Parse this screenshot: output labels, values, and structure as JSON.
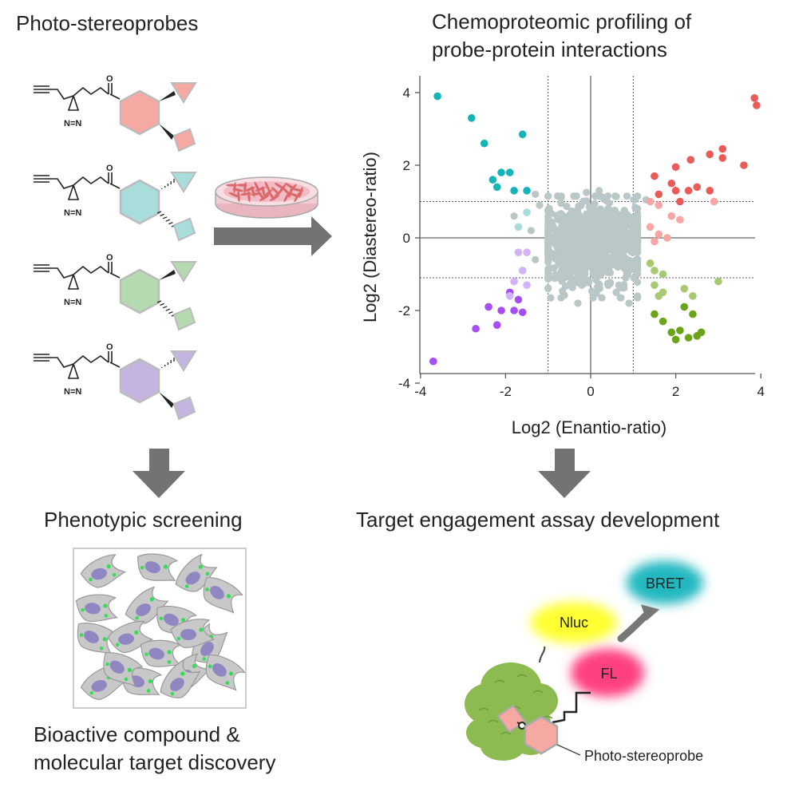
{
  "titles": {
    "photo_stereoprobes": "Photo-stereoprobes",
    "chemoproteomic_line1": "Chemoproteomic profiling of",
    "chemoproteomic_line2": "probe-protein interactions",
    "phenotypic_screening": "Phenotypic screening",
    "target_engagement": "Target engagement assay development",
    "bioactive_line1": "Bioactive compound &",
    "bioactive_line2": "molecular target discovery"
  },
  "probes": {
    "atom_oxygen": "O",
    "atom_diazirine": "N=N",
    "colors": [
      "#f6a8a3",
      "#a8dddc",
      "#b5d9b0",
      "#c4b5e0"
    ]
  },
  "assay": {
    "nluc": "Nluc",
    "fl": "FL",
    "bret": "BRET",
    "probe_label": "Photo-stereoprobe",
    "nluc_color": "#ffff33",
    "fl_color": "#ff3f7f",
    "bret_color": "#22b8c0",
    "protein_color": "#8dbb52"
  },
  "chart_data": {
    "type": "scatter",
    "title": "",
    "xlabel": "Log2 (Enantio-ratio)",
    "ylabel": "Log2 (Diastereo-ratio)",
    "xlim": [
      -4,
      4
    ],
    "ylim": [
      -4.3,
      4.3
    ],
    "xticks": [
      "-4",
      "-2",
      "0",
      "2",
      "4"
    ],
    "yticks": [
      "-4",
      "-2",
      "0",
      "2",
      "4"
    ],
    "thresholds": {
      "x": [
        -1,
        1
      ],
      "y": [
        -1.1,
        1.0
      ]
    },
    "series": [
      {
        "name": "teal",
        "color": "#16b3b8",
        "points": [
          [
            -3.6,
            3.9
          ],
          [
            -2.8,
            3.3
          ],
          [
            -2.5,
            2.6
          ],
          [
            -1.6,
            2.85
          ],
          [
            -2.3,
            1.6
          ],
          [
            -2.1,
            1.8
          ],
          [
            -1.9,
            1.8
          ],
          [
            -2.2,
            1.4
          ],
          [
            -1.8,
            1.3
          ],
          [
            -1.5,
            1.3
          ]
        ]
      },
      {
        "name": "teal-light",
        "color": "#a8dcdb",
        "points": [
          [
            -1.5,
            0.7
          ],
          [
            -1.7,
            0.3
          ]
        ]
      },
      {
        "name": "red",
        "color": "#ea5a57",
        "points": [
          [
            3.85,
            3.85
          ],
          [
            3.9,
            3.65
          ],
          [
            3.1,
            2.45
          ],
          [
            3.1,
            2.2
          ],
          [
            2.8,
            2.3
          ],
          [
            3.6,
            2.0
          ],
          [
            2.35,
            2.15
          ],
          [
            2.0,
            1.95
          ],
          [
            1.5,
            1.7
          ],
          [
            1.9,
            1.5
          ],
          [
            2.3,
            1.3
          ],
          [
            2.5,
            1.4
          ],
          [
            2.8,
            1.3
          ],
          [
            1.6,
            1.2
          ],
          [
            2.0,
            1.3
          ],
          [
            2.1,
            1.0
          ]
        ]
      },
      {
        "name": "red-light",
        "color": "#f6a6a3",
        "points": [
          [
            1.4,
            1.0
          ],
          [
            1.6,
            0.9
          ],
          [
            1.9,
            0.6
          ],
          [
            1.4,
            0.3
          ],
          [
            1.6,
            0.1
          ],
          [
            1.5,
            -0.1
          ],
          [
            2.1,
            0.5
          ],
          [
            2.9,
            1.0
          ],
          [
            1.8,
            0.0
          ]
        ]
      },
      {
        "name": "green",
        "color": "#6ba319",
        "points": [
          [
            2.2,
            -1.9
          ],
          [
            2.4,
            -2.1
          ],
          [
            1.5,
            -2.1
          ],
          [
            1.7,
            -2.3
          ],
          [
            1.9,
            -2.6
          ],
          [
            2.1,
            -2.55
          ],
          [
            2.3,
            -2.75
          ],
          [
            2.5,
            -2.7
          ],
          [
            2.6,
            -2.6
          ],
          [
            2.0,
            -2.8
          ]
        ]
      },
      {
        "name": "green-light",
        "color": "#a7c974",
        "points": [
          [
            1.4,
            -0.7
          ],
          [
            1.5,
            -0.9
          ],
          [
            1.7,
            -1.0
          ],
          [
            1.5,
            -1.3
          ],
          [
            1.7,
            -1.5
          ],
          [
            2.2,
            -1.4
          ],
          [
            2.4,
            -1.6
          ],
          [
            3.0,
            -1.2
          ],
          [
            1.6,
            -1.6
          ]
        ]
      },
      {
        "name": "purple",
        "color": "#a64ff0",
        "points": [
          [
            -3.7,
            -3.4
          ],
          [
            -2.7,
            -2.5
          ],
          [
            -2.2,
            -2.4
          ],
          [
            -2.1,
            -2.0
          ],
          [
            -1.8,
            -2.0
          ],
          [
            -1.7,
            -1.7
          ],
          [
            -1.6,
            -2.05
          ],
          [
            -2.4,
            -1.9
          ],
          [
            -1.9,
            -1.5
          ]
        ]
      },
      {
        "name": "purple-light",
        "color": "#d2b3f5",
        "points": [
          [
            -1.7,
            -0.4
          ],
          [
            -1.5,
            -0.4
          ],
          [
            -1.6,
            -0.9
          ],
          [
            -1.8,
            -1.2
          ],
          [
            -1.5,
            -1.3
          ],
          [
            -1.9,
            -1.6
          ]
        ]
      }
    ]
  }
}
